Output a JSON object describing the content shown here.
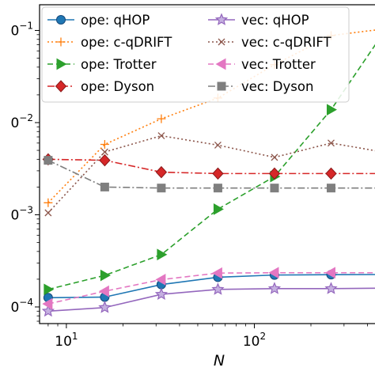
{
  "chart_data": {
    "type": "line",
    "xlabel": "N",
    "ylabel": "",
    "x_scale": "log",
    "y_scale": "log",
    "xlim": [
      7.2,
      512
    ],
    "ylim": [
      6.6e-05,
      0.19
    ],
    "x": [
      8,
      16,
      32,
      64,
      128,
      256,
      512
    ],
    "x_ticks": [
      {
        "value": 10,
        "base": "10",
        "exp": "1"
      },
      {
        "value": 100,
        "base": "10",
        "exp": "2"
      }
    ],
    "y_ticks": [
      {
        "value": 0.0001,
        "base": "0",
        "exp": "−4"
      },
      {
        "value": 0.001,
        "base": "0",
        "exp": "−3"
      },
      {
        "value": 0.01,
        "base": "0",
        "exp": "−2"
      },
      {
        "value": 0.1,
        "base": "0",
        "exp": "−1"
      }
    ],
    "grid": false,
    "legend_position": "top-left",
    "series": [
      {
        "name": "ope: qHOP",
        "color": "#1f77b4",
        "dash": "solid",
        "marker": "circle",
        "values": [
          0.000126,
          0.000128,
          0.000175,
          0.00021,
          0.000222,
          0.000224,
          0.000225
        ]
      },
      {
        "name": "ope: c-qDRIFT",
        "color": "#ff7f0e",
        "dash": "dotted",
        "marker": "plus",
        "values": [
          0.00135,
          0.0058,
          0.011,
          0.0185,
          0.0425,
          0.088,
          0.105
        ]
      },
      {
        "name": "ope: Trotter",
        "color": "#2ca02c",
        "dash": "dashed",
        "marker": "triangle-right",
        "values": [
          0.000155,
          0.00022,
          0.00037,
          0.00115,
          0.0026,
          0.0138,
          0.11
        ]
      },
      {
        "name": "ope: Dyson",
        "color": "#d62728",
        "dash": "dashdot",
        "marker": "diamond",
        "values": [
          0.004,
          0.0039,
          0.0029,
          0.0028,
          0.0028,
          0.0028,
          0.0028
        ]
      },
      {
        "name": "vec: qHOP",
        "color": "#9467bd",
        "dash": "solid",
        "marker": "star",
        "values": [
          9e-05,
          9.85e-05,
          0.000137,
          0.000155,
          0.000158,
          0.000158,
          0.00016
        ]
      },
      {
        "name": "vec: c-qDRIFT",
        "color": "#8c564b",
        "dash": "dotted",
        "marker": "x",
        "values": [
          0.00105,
          0.0048,
          0.0072,
          0.0057,
          0.0042,
          0.006,
          0.0047
        ]
      },
      {
        "name": "vec: Trotter",
        "color": "#e377c2",
        "dash": "dashed",
        "marker": "triangle-left",
        "values": [
          0.000108,
          0.000148,
          0.000198,
          0.000233,
          0.000235,
          0.000235,
          0.000235
        ]
      },
      {
        "name": "vec: Dyson",
        "color": "#7f7f7f",
        "dash": "dashdot",
        "marker": "square",
        "values": [
          0.0039,
          0.002,
          0.00195,
          0.00195,
          0.00195,
          0.00195,
          0.00195
        ]
      }
    ]
  }
}
